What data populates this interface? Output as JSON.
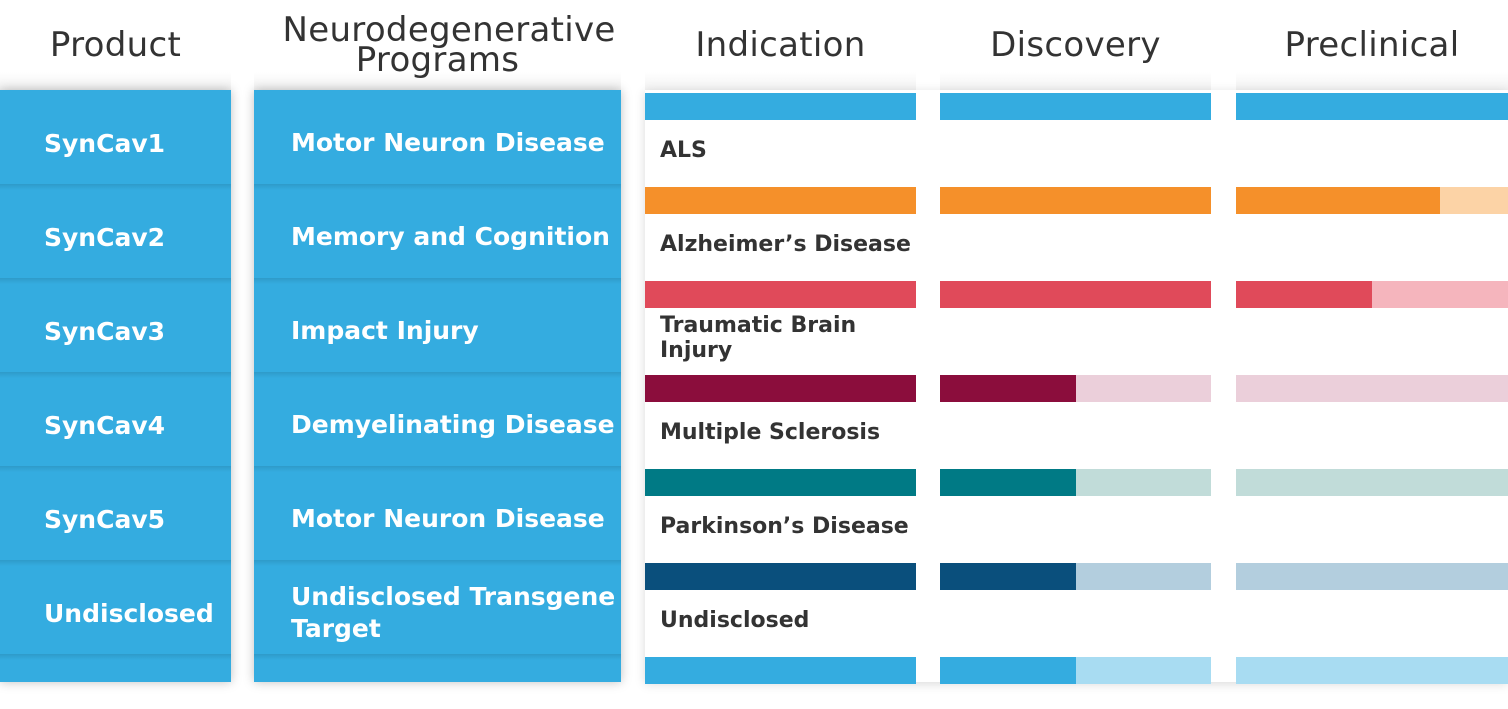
{
  "headers": {
    "product": "Product",
    "programs": "Neurodegenerative Programs",
    "indication": "Indication",
    "discovery": "Discovery",
    "preclinical": "Preclinical"
  },
  "chart_data": {
    "type": "table",
    "stages": [
      "Indication",
      "Discovery",
      "Preclinical"
    ],
    "rows": [
      {
        "product": "SynCav1",
        "program": "Motor Neuron Disease",
        "indication": "ALS",
        "color": "#34ace0",
        "light": "#a8dcf2",
        "progress": 3.0
      },
      {
        "product": "SynCav2",
        "program": "Memory and Cognition",
        "indication": "Alzheimer’s Disease",
        "color": "#f5902a",
        "light": "#fcd3a6",
        "progress": 2.75
      },
      {
        "product": "SynCav3",
        "program": "Impact Injury",
        "indication": "Traumatic Brain Injury",
        "color": "#e04a5a",
        "light": "#f5b5bd",
        "progress": 2.5
      },
      {
        "product": "SynCav4",
        "program": "Demyelinating Disease",
        "indication": "Multiple Sclerosis",
        "color": "#8b0d3c",
        "light": "#ebcfda",
        "progress": 1.5
      },
      {
        "product": "SynCav5",
        "program": "Motor Neuron Disease",
        "indication": "Parkinson’s Disease",
        "color": "#007a85",
        "light": "#c1dcd9",
        "progress": 1.5
      },
      {
        "product": "Undisclosed",
        "program": "Undisclosed Transgene Target",
        "indication": "Undisclosed",
        "color": "#0a4f7c",
        "light": "#b3cede",
        "progress": 1.5
      }
    ],
    "footer": {
      "color": "#34ace0",
      "light": "#a8dcf2",
      "progress": 1.5
    }
  }
}
